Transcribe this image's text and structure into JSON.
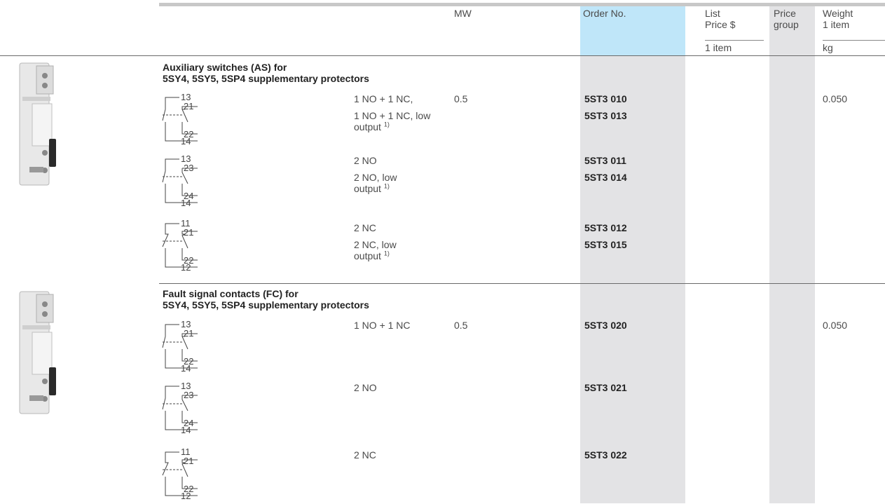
{
  "header": {
    "mw": "MW",
    "order_no": "Order No.",
    "list_price": [
      "List",
      "Price $"
    ],
    "price_group": [
      "Price",
      "group"
    ],
    "weight": [
      "Weight",
      "1 item"
    ],
    "unit_list_price": "1 item",
    "unit_weight": "kg"
  },
  "sections": [
    {
      "title": [
        "Auxiliary switches (AS) for",
        "5SY4, 5SY5, 5SP4 supplementary protectors"
      ],
      "groups": [
        {
          "diagram": {
            "type": "no-nc",
            "labels": [
              "13",
              "21",
              "22",
              "14"
            ]
          },
          "rows": [
            {
              "desc": [
                "1 NO + 1 NC,"
              ],
              "mw": "0.5",
              "order": "5ST3 010",
              "weight": "0.050"
            },
            {
              "desc": [
                "1 NO + 1 NC, low",
                "output"
              ],
              "note": "1)",
              "order": "5ST3 013"
            }
          ]
        },
        {
          "diagram": {
            "type": "no-no",
            "labels": [
              "13",
              "23",
              "24",
              "14"
            ]
          },
          "rows": [
            {
              "desc": [
                "2 NO"
              ],
              "order": "5ST3 011"
            },
            {
              "desc": [
                "2 NO, low",
                "output"
              ],
              "note": "1)",
              "order": "5ST3 014"
            }
          ]
        },
        {
          "diagram": {
            "type": "nc-nc",
            "labels": [
              "11",
              "21",
              "22",
              "12"
            ]
          },
          "rows": [
            {
              "desc": [
                "2 NC"
              ],
              "order": "5ST3 012"
            },
            {
              "desc": [
                "2 NC, low",
                "output"
              ],
              "note": "1)",
              "order": "5ST3 015"
            }
          ]
        }
      ]
    },
    {
      "title": [
        "Fault signal contacts (FC) for",
        "5SY4, 5SY5, 5SP4 supplementary protectors"
      ],
      "groups": [
        {
          "diagram": {
            "type": "no-nc",
            "labels": [
              "13",
              "21",
              "22",
              "14"
            ]
          },
          "rows": [
            {
              "desc": [
                "1 NO + 1 NC"
              ],
              "mw": "0.5",
              "order": "5ST3 020",
              "weight": "0.050"
            }
          ]
        },
        {
          "diagram": {
            "type": "no-no",
            "labels": [
              "13",
              "23",
              "24",
              "14"
            ]
          },
          "rows": [
            {
              "desc": [
                "2 NO"
              ],
              "order": "5ST3 021"
            }
          ]
        },
        {
          "diagram": {
            "type": "nc-nc",
            "labels": [
              "11",
              "21",
              "22",
              "12"
            ]
          },
          "rows": [
            {
              "desc": [
                "2 NC"
              ],
              "order": "5ST3 022"
            }
          ]
        }
      ]
    }
  ]
}
